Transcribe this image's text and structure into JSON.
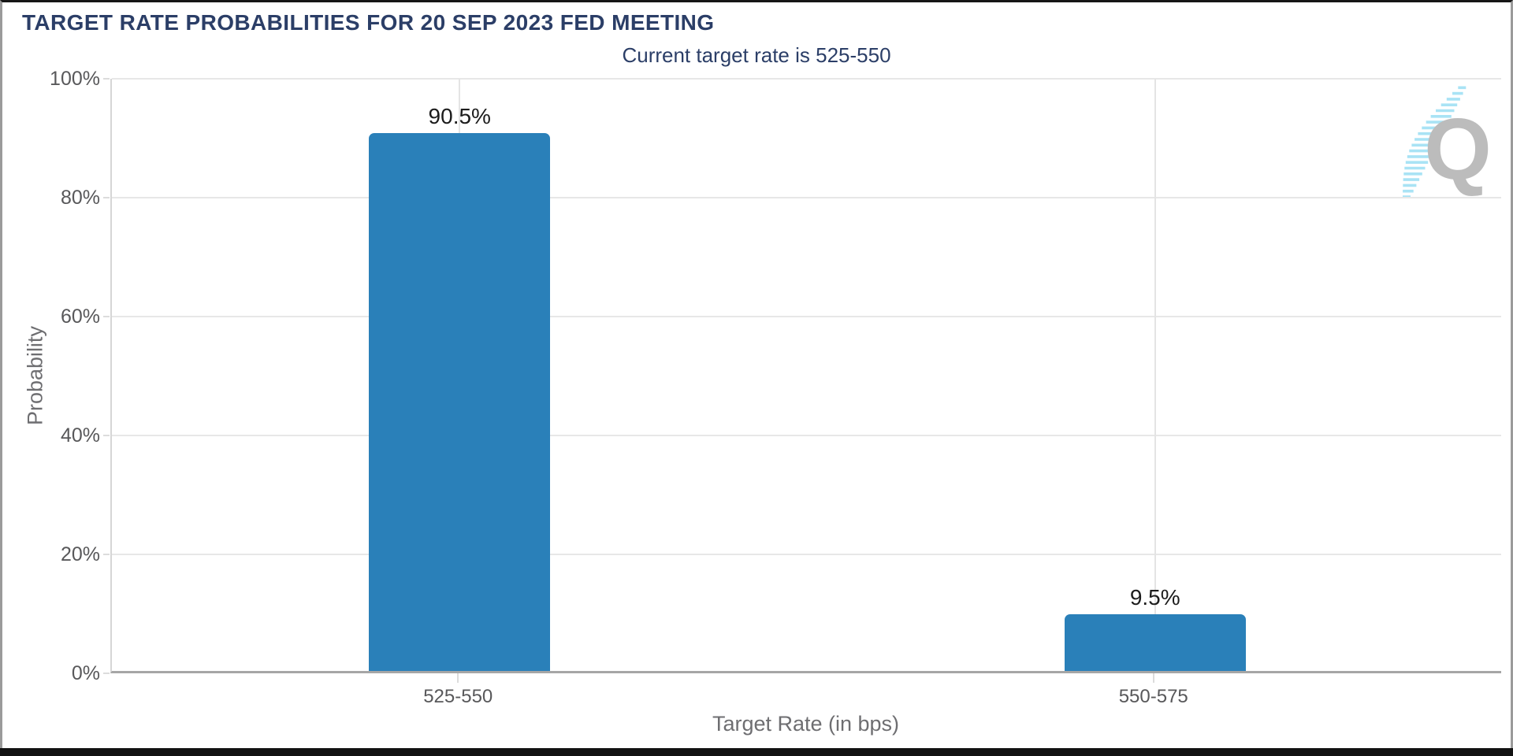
{
  "chart_data": {
    "type": "bar",
    "title": "TARGET RATE PROBABILITIES FOR 20 SEP 2023 FED MEETING",
    "subtitle": "Current target rate is 525-550",
    "xlabel": "Target Rate (in bps)",
    "ylabel": "Probability",
    "categories": [
      "525-550",
      "550-575"
    ],
    "values": [
      90.5,
      9.5
    ],
    "bar_labels": [
      "90.5%",
      "9.5%"
    ],
    "ylim": [
      0,
      100
    ],
    "y_ticks": [
      {
        "value": 0,
        "label": "0%"
      },
      {
        "value": 20,
        "label": "20%"
      },
      {
        "value": 40,
        "label": "40%"
      },
      {
        "value": 60,
        "label": "60%"
      },
      {
        "value": 80,
        "label": "80%"
      },
      {
        "value": 100,
        "label": "100%"
      }
    ],
    "grid": "on",
    "legend": "none",
    "colors": {
      "bar": "#2A80B9",
      "heading": "#2B3E67",
      "tick_text": "#58585A",
      "axis_title_text": "#6E6E71",
      "value_label": "#1C1C1C",
      "watermark_q": "#BCBCBC",
      "watermark_dash": "#A9E3F5"
    }
  },
  "branding": {
    "watermark_letter": "Q"
  }
}
